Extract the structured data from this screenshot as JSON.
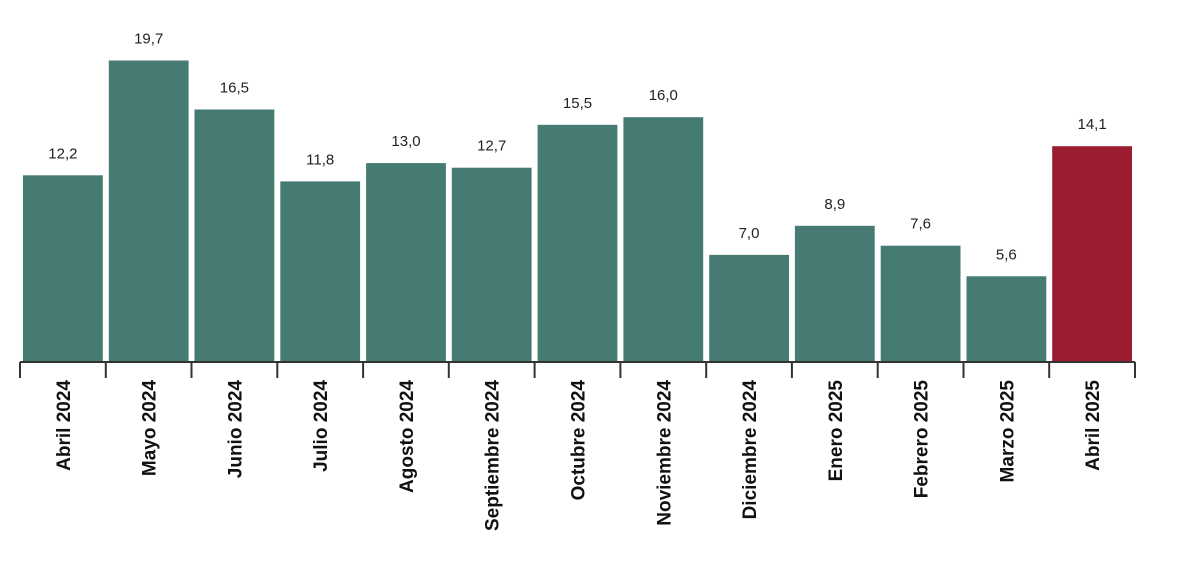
{
  "chart_data": {
    "type": "bar",
    "title": "",
    "xlabel": "",
    "ylabel": "",
    "ylim": [
      0,
      21.5
    ],
    "grid": false,
    "legend": "none",
    "categories": [
      "Abril 2024",
      "Mayo 2024",
      "Junio 2024",
      "Julio 2024",
      "Agosto 2024",
      "Septiembre 2024",
      "Octubre 2024",
      "Noviembre 2024",
      "Diciembre 2024",
      "Enero 2025",
      "Febrero 2025",
      "Marzo 2025",
      "Abril 2025"
    ],
    "values": [
      12.2,
      19.7,
      16.5,
      11.8,
      13.0,
      12.7,
      15.5,
      16.0,
      7.0,
      8.9,
      7.6,
      5.6,
      14.1
    ],
    "value_labels": [
      "12,2",
      "19,7",
      "16,5",
      "11,8",
      "13,0",
      "12,7",
      "15,5",
      "16,0",
      "7,0",
      "8,9",
      "7,6",
      "5,6",
      "14,1"
    ],
    "colors": {
      "default": "#457b73",
      "highlight": "#9b1b30",
      "axis": "#333333"
    },
    "highlight_index": 12
  }
}
